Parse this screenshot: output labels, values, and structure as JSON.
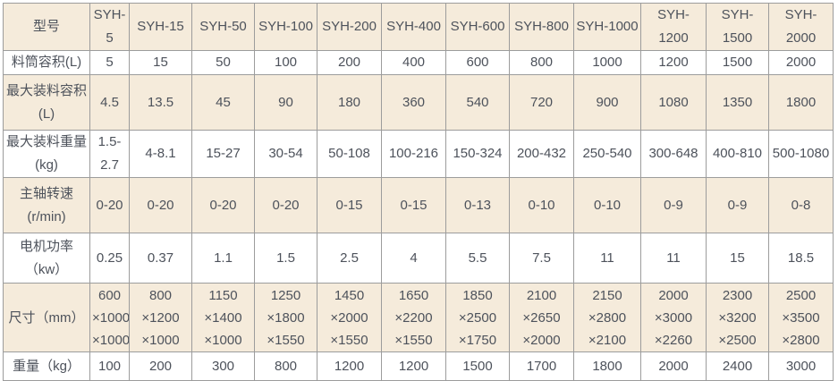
{
  "table": {
    "corner_label": "型号",
    "models": [
      "SYH-5",
      "SYH-15",
      "SYH-50",
      "SYH-100",
      "SYH-200",
      "SYH-400",
      "SYH-600",
      "SYH-800",
      "SYH-1000",
      "SYH-1200",
      "SYH-1500",
      "SYH-2000"
    ],
    "rows": [
      {
        "label": "料筒容积(L)",
        "values": [
          "5",
          "15",
          "50",
          "100",
          "200",
          "400",
          "600",
          "800",
          "1000",
          "1200",
          "1500",
          "2000"
        ]
      },
      {
        "label": "最大装料容积\n(L)",
        "values": [
          "4.5",
          "13.5",
          "45",
          "90",
          "180",
          "360",
          "540",
          "720",
          "900",
          "1080",
          "1350",
          "1800"
        ]
      },
      {
        "label": "最大装料重量\n(kg)",
        "values": [
          "1.5-\n2.7",
          "4-8.1",
          "15-27",
          "30-54",
          "50-108",
          "100-216",
          "150-324",
          "200-432",
          "250-540",
          "300-648",
          "400-810",
          "500-1080"
        ]
      },
      {
        "label": "主轴转速\n(r/min)",
        "values": [
          "0-20",
          "0-20",
          "0-20",
          "0-20",
          "0-15",
          "0-15",
          "0-13",
          "0-10",
          "0-10",
          "0-9",
          "0-9",
          "0-8"
        ]
      },
      {
        "label": "电机功率\n（kw）",
        "values": [
          "0.25",
          "0.37",
          "1.1",
          "1.5",
          "2.5",
          "4",
          "5.5",
          "7.5",
          "11",
          "11",
          "15",
          "18.5"
        ]
      },
      {
        "label": "尺寸（mm）",
        "values": [
          "600\n×1000\n×1000",
          "800\n×1200\n×1000",
          "1150\n×1400\n×1000",
          "1250\n×1800\n×1550",
          "1450\n×2000\n×1550",
          "1650\n×2200\n×1550",
          "1850\n×2500\n×1750",
          "2100\n×2650\n×2000",
          "2150\n×2800\n×2100",
          "2000\n×3000\n×2260",
          "2300\n×3200\n×2500",
          "2500\n×3500\n×2800"
        ]
      },
      {
        "label": "重量（kg）",
        "values": [
          "100",
          "200",
          "300",
          "800",
          "1200",
          "1200",
          "1500",
          "1700",
          "1800",
          "2000",
          "2400",
          "3000"
        ]
      }
    ],
    "colors": {
      "stripe_bg": "#F5EBDB",
      "white_bg": "#FFFFFF",
      "inner_border": "#9C9C9C",
      "outer_border": "#8C8C8C",
      "text": "#4D525B"
    }
  }
}
